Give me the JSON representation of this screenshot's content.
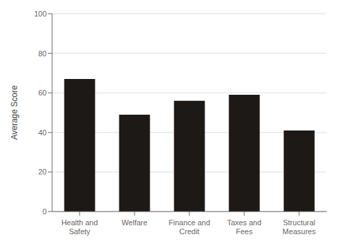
{
  "chart_data": {
    "type": "bar",
    "categories": [
      "Health and Safety",
      "Welfare",
      "Finance and Credit",
      "Taxes and Fees",
      "Structural Measures"
    ],
    "values": [
      67.0,
      49.0,
      56.0,
      59.0,
      41.0
    ],
    "color": "#1c1917",
    "ylabel": "Average Score",
    "ylim": [
      0,
      100
    ],
    "yticks": [
      0,
      20,
      40,
      60,
      80,
      100
    ],
    "grid": true
  }
}
